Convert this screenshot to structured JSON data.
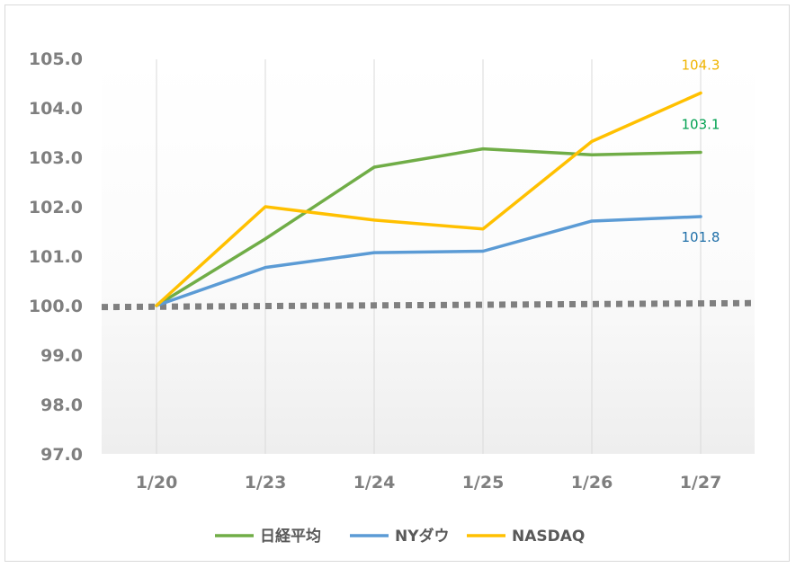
{
  "chart_data": {
    "type": "line",
    "title": "",
    "xlabel": "",
    "ylabel": "",
    "categories": [
      "1/20",
      "1/23",
      "1/24",
      "1/25",
      "1/26",
      "1/27"
    ],
    "ylim": [
      97.0,
      105.0
    ],
    "yticks": [
      "97.0",
      "98.0",
      "99.0",
      "100.0",
      "101.0",
      "102.0",
      "103.0",
      "104.0",
      "105.0"
    ],
    "grid": "vertical",
    "legend_position": "bottom",
    "series": [
      {
        "name": "日経平均",
        "color": "#70ad47",
        "values": [
          100.0,
          101.35,
          102.8,
          103.17,
          103.05,
          103.1
        ],
        "end_label": "103.1",
        "label_color": "#00a050"
      },
      {
        "name": "NYダウ",
        "color": "#5b9bd5",
        "values": [
          100.0,
          100.77,
          101.07,
          101.1,
          101.71,
          101.8
        ],
        "end_label": "101.8",
        "label_color": "#1f6fa8"
      },
      {
        "name": "NASDAQ",
        "color": "#ffc000",
        "values": [
          100.0,
          102.0,
          101.73,
          101.55,
          103.32,
          104.3
        ],
        "end_label": "104.3",
        "label_color": "#f0b400"
      }
    ],
    "reference_line": {
      "values": [
        99.97,
        100.05
      ],
      "color": "#808080",
      "style": "dotted"
    }
  }
}
